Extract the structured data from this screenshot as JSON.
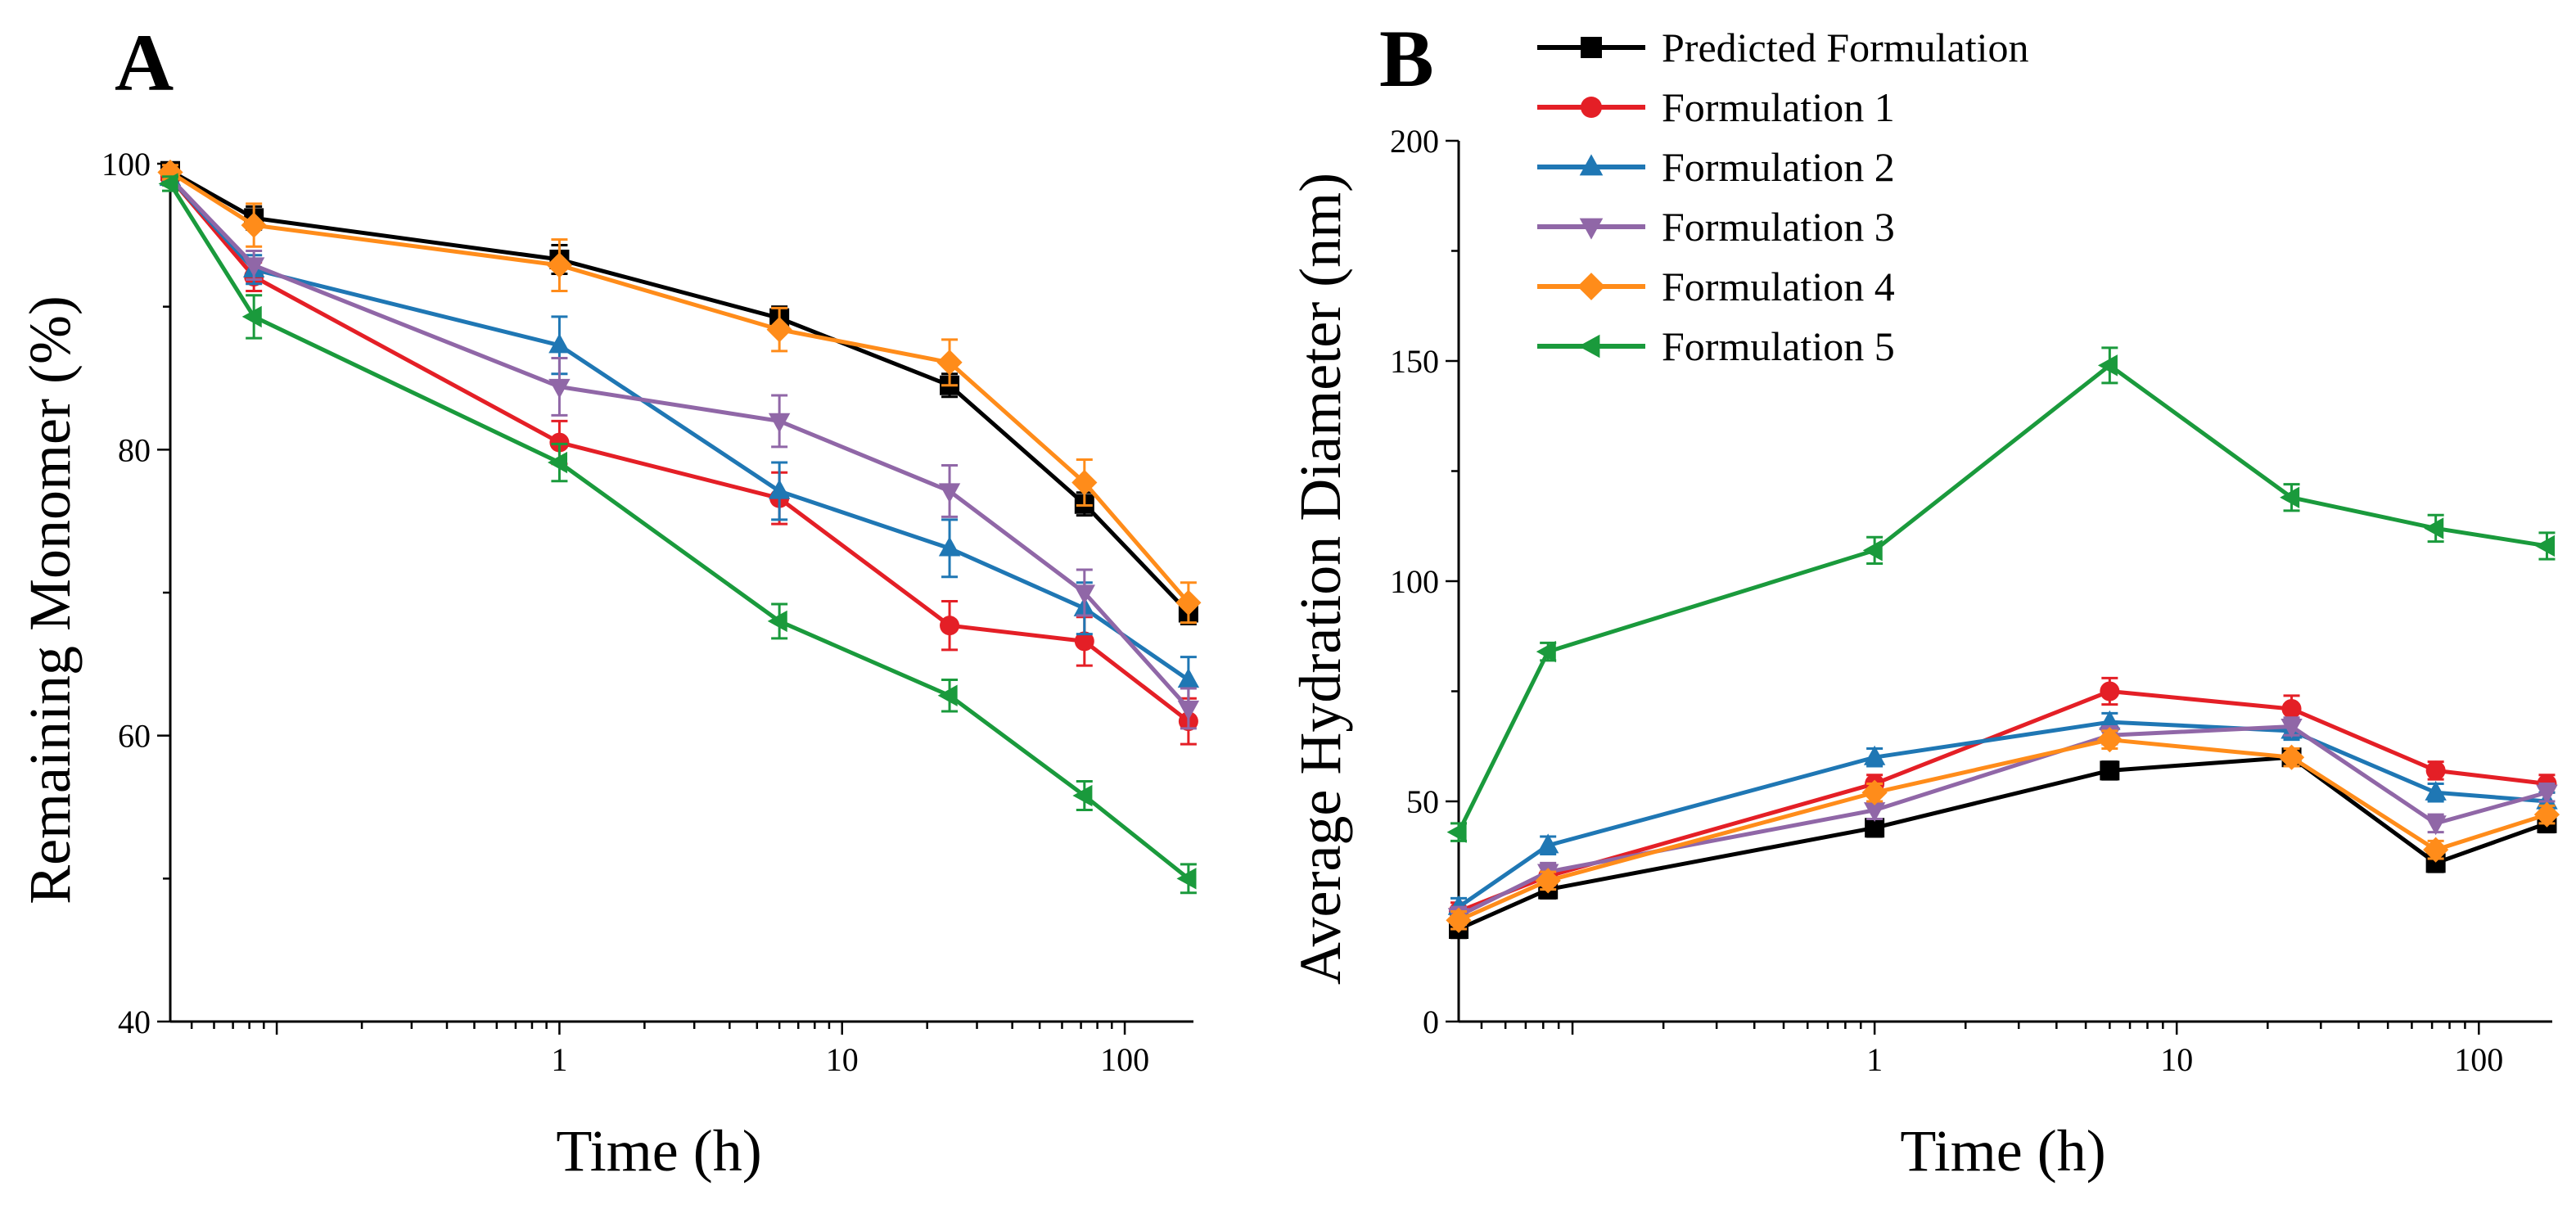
{
  "figure": {
    "legend": {
      "entries": [
        "Predicted Formulation",
        "Formulation 1",
        "Formulation 2",
        "Formulation 3",
        "Formulation 4",
        "Formulation 5"
      ],
      "markers": [
        "square",
        "circle",
        "triangle-up",
        "triangle-down",
        "diamond",
        "triangle-left"
      ],
      "placement": "top of panel B"
    }
  },
  "chart_data": [
    {
      "panel_label": "A",
      "type": "line",
      "xscale": "log",
      "title": "",
      "xlabel": "Time (h)",
      "ylabel": "Remaining Monomer (%)",
      "xlim": [
        0.042,
        175
      ],
      "ylim": [
        40,
        100
      ],
      "x_ticks": [
        1,
        10,
        100
      ],
      "x_tick_labels": [
        "1",
        "10",
        "100"
      ],
      "y_ticks": [
        40,
        60,
        80,
        100
      ],
      "y_tick_labels": [
        "40",
        "60",
        "80",
        "100"
      ],
      "grid": false,
      "series": [
        {
          "name": "Predicted Formulation",
          "color": "#000000",
          "marker": "square",
          "x": [
            0.042,
            0.083,
            1,
            6,
            24,
            72,
            168
          ],
          "y": [
            99.5,
            96.2,
            93.3,
            89.2,
            84.5,
            76.2,
            68.6
          ],
          "err": [
            0.5,
            0.8,
            1.0,
            0.8,
            0.8,
            0.8,
            0.8
          ]
        },
        {
          "name": "Formulation 1",
          "color": "#E41F26",
          "marker": "circle",
          "x": [
            0.042,
            0.083,
            1,
            6,
            24,
            72,
            168
          ],
          "y": [
            99.0,
            92.1,
            80.5,
            76.6,
            67.7,
            66.6,
            61.0
          ],
          "err": [
            0.5,
            1.0,
            1.5,
            1.8,
            1.7,
            1.7,
            1.6
          ]
        },
        {
          "name": "Formulation 2",
          "color": "#1F77B4",
          "marker": "triangle-up",
          "x": [
            0.042,
            0.083,
            1,
            6,
            24,
            72,
            168
          ],
          "y": [
            99.0,
            92.6,
            87.3,
            77.1,
            73.1,
            68.9,
            63.9
          ],
          "err": [
            0.5,
            1.0,
            2.0,
            2.0,
            2.0,
            1.8,
            1.6
          ]
        },
        {
          "name": "Formulation 3",
          "color": "#9067A7",
          "marker": "triangle-down",
          "x": [
            0.042,
            0.083,
            1,
            6,
            24,
            72,
            168
          ],
          "y": [
            99.0,
            92.9,
            84.4,
            82.0,
            77.1,
            70.0,
            61.9
          ],
          "err": [
            0.5,
            1.0,
            2.0,
            1.8,
            1.8,
            1.6,
            1.4
          ]
        },
        {
          "name": "Formulation 4",
          "color": "#FF8C1A",
          "marker": "diamond",
          "x": [
            0.042,
            0.083,
            1,
            6,
            24,
            72,
            168
          ],
          "y": [
            99.4,
            95.7,
            92.9,
            88.4,
            86.1,
            77.7,
            69.3
          ],
          "err": [
            0.5,
            1.5,
            1.8,
            1.5,
            1.6,
            1.6,
            1.4
          ]
        },
        {
          "name": "Formulation 5",
          "color": "#1A9A3C",
          "marker": "triangle-left",
          "x": [
            0.042,
            0.083,
            1,
            6,
            24,
            72,
            168
          ],
          "y": [
            98.6,
            89.3,
            79.1,
            68.0,
            62.8,
            55.8,
            50.0
          ],
          "err": [
            0.5,
            1.5,
            1.3,
            1.2,
            1.1,
            1.0,
            1.0
          ]
        }
      ]
    },
    {
      "panel_label": "B",
      "type": "line",
      "xscale": "log",
      "title": "",
      "xlabel": "Time (h)",
      "ylabel": "Average Hydration Diameter (nm)",
      "xlim": [
        0.042,
        175
      ],
      "ylim": [
        0,
        200
      ],
      "x_ticks": [
        1,
        10,
        100
      ],
      "x_tick_labels": [
        "1",
        "10",
        "100"
      ],
      "y_ticks": [
        0,
        50,
        100,
        150,
        200
      ],
      "y_tick_labels": [
        "0",
        "50",
        "100",
        "150",
        "200"
      ],
      "grid": false,
      "series": [
        {
          "name": "Predicted Formulation",
          "color": "#000000",
          "marker": "square",
          "x": [
            0.042,
            0.083,
            1,
            6,
            24,
            72,
            168
          ],
          "y": [
            21,
            30,
            44,
            57,
            60,
            36,
            45
          ],
          "err": [
            2,
            2,
            2,
            2,
            2,
            2,
            2
          ]
        },
        {
          "name": "Formulation 1",
          "color": "#E41F26",
          "marker": "circle",
          "x": [
            0.042,
            0.083,
            1,
            6,
            24,
            72,
            168
          ],
          "y": [
            25,
            33,
            54,
            75,
            71,
            57,
            54
          ],
          "err": [
            2,
            2,
            2,
            3,
            3,
            2,
            2
          ]
        },
        {
          "name": "Formulation 2",
          "color": "#1F77B4",
          "marker": "triangle-up",
          "x": [
            0.042,
            0.083,
            1,
            6,
            24,
            72,
            168
          ],
          "y": [
            26,
            40,
            60,
            68,
            66,
            52,
            50
          ],
          "err": [
            2,
            2,
            2,
            2,
            2,
            2,
            2
          ]
        },
        {
          "name": "Formulation 3",
          "color": "#9067A7",
          "marker": "triangle-down",
          "x": [
            0.042,
            0.083,
            1,
            6,
            24,
            72,
            168
          ],
          "y": [
            24,
            34,
            48,
            65,
            67,
            45,
            52
          ],
          "err": [
            2,
            2,
            2,
            2,
            2,
            2,
            2
          ]
        },
        {
          "name": "Formulation 4",
          "color": "#FF8C1A",
          "marker": "diamond",
          "x": [
            0.042,
            0.083,
            1,
            6,
            24,
            72,
            168
          ],
          "y": [
            23,
            32,
            52,
            64,
            60,
            39,
            47
          ],
          "err": [
            2,
            2,
            2,
            2,
            2,
            2,
            2
          ]
        },
        {
          "name": "Formulation 5",
          "color": "#1A9A3C",
          "marker": "triangle-left",
          "x": [
            0.042,
            0.083,
            1,
            6,
            24,
            72,
            168
          ],
          "y": [
            43,
            84,
            107,
            149,
            119,
            112,
            108
          ],
          "err": [
            2,
            2,
            3,
            4,
            3,
            3,
            3
          ]
        }
      ]
    }
  ]
}
